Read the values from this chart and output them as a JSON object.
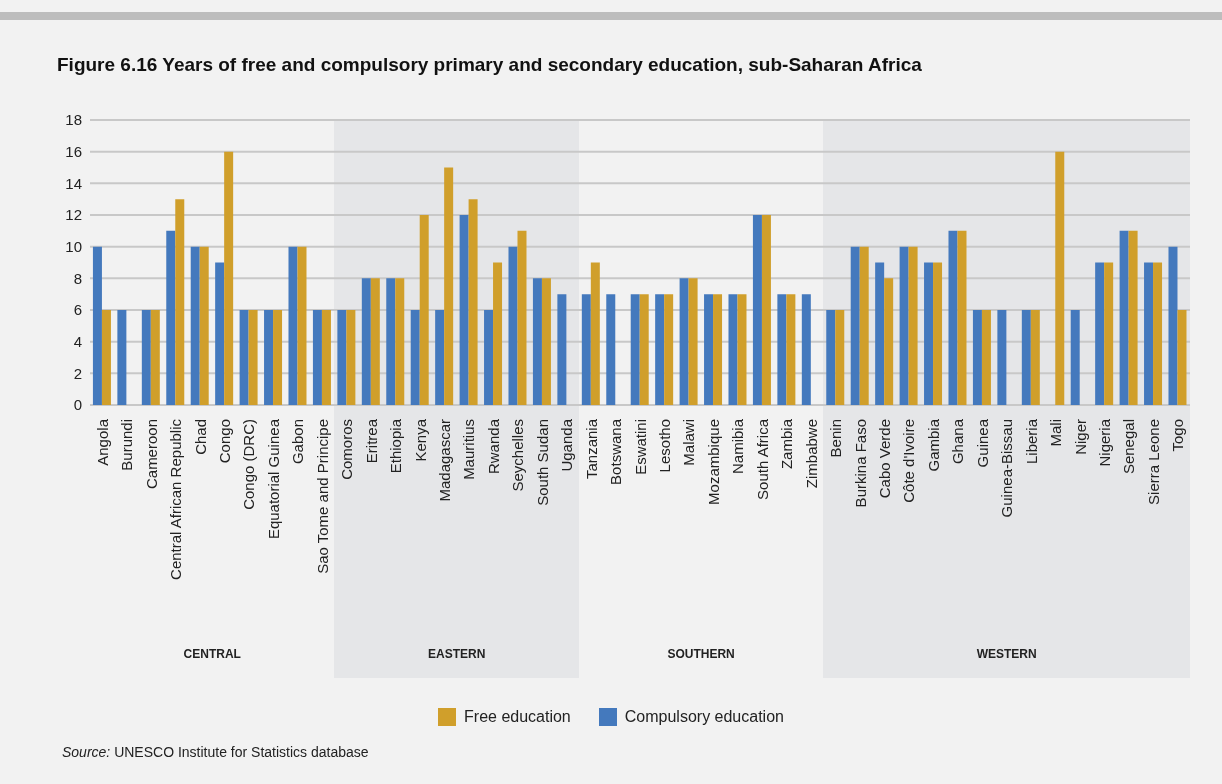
{
  "chart_data": {
    "type": "bar",
    "title": "Figure 6.16  Years of free and compulsory primary and secondary education, sub-Saharan Africa",
    "categories": [
      "Angola",
      "Burundi",
      "Cameroon",
      "Central African Republic",
      "Chad",
      "Congo",
      "Congo (DRC)",
      "Equatorial Guinea",
      "Gabon",
      "Sao Tome and Principe",
      "Comoros",
      "Eritrea",
      "Ethiopia",
      "Kenya",
      "Madagascar",
      "Mauritius",
      "Rwanda",
      "Seychelles",
      "South Sudan",
      "Uganda",
      "Tanzania",
      "Botswana",
      "Eswatini",
      "Lesotho",
      "Malawi",
      "Mozambique",
      "Namibia",
      "South Africa",
      "Zambia",
      "Zimbabwe",
      "Benin",
      "Burkina Faso",
      "Cabo Verde",
      "Côte d'Ivoire",
      "Gambia",
      "Ghana",
      "Guinea",
      "Guinea-Bissau",
      "Liberia",
      "Mali",
      "Niger",
      "Nigeria",
      "Senegal",
      "Sierra Leone",
      "Togo"
    ],
    "series": [
      {
        "name": "Free education",
        "color": "#d09f2b",
        "values": [
          6,
          null,
          6,
          13,
          10,
          16,
          6,
          6,
          10,
          6,
          6,
          8,
          8,
          12,
          15,
          13,
          9,
          11,
          8,
          null,
          9,
          null,
          7,
          7,
          8,
          7,
          7,
          12,
          7,
          null,
          6,
          10,
          8,
          10,
          9,
          11,
          6,
          null,
          6,
          16,
          null,
          9,
          11,
          9,
          6
        ]
      },
      {
        "name": "Compulsory education",
        "color": "#4479bd",
        "values": [
          10,
          6,
          6,
          11,
          10,
          9,
          6,
          6,
          10,
          6,
          6,
          8,
          8,
          6,
          6,
          12,
          6,
          10,
          8,
          7,
          7,
          7,
          7,
          7,
          8,
          7,
          7,
          12,
          7,
          7,
          6,
          10,
          9,
          10,
          9,
          11,
          6,
          6,
          6,
          null,
          6,
          9,
          11,
          9,
          10
        ]
      }
    ],
    "ylim": [
      0,
      18
    ],
    "yticks": [
      0,
      2,
      4,
      6,
      8,
      10,
      12,
      14,
      16,
      18
    ],
    "grid": "y",
    "legend": "bottom",
    "bands": [
      {
        "axis": "x",
        "from": "Comoros",
        "to": "Uganda",
        "label": "EASTERN",
        "color": "#e5e6e8"
      },
      {
        "axis": "x",
        "from": "Benin",
        "to": "Togo",
        "label": "WESTERN",
        "color": "#e5e6e8"
      }
    ],
    "annotations": [
      "CENTRAL",
      "SOUTHERN",
      "Source: UNESCO Institute for Statistics database"
    ]
  }
}
